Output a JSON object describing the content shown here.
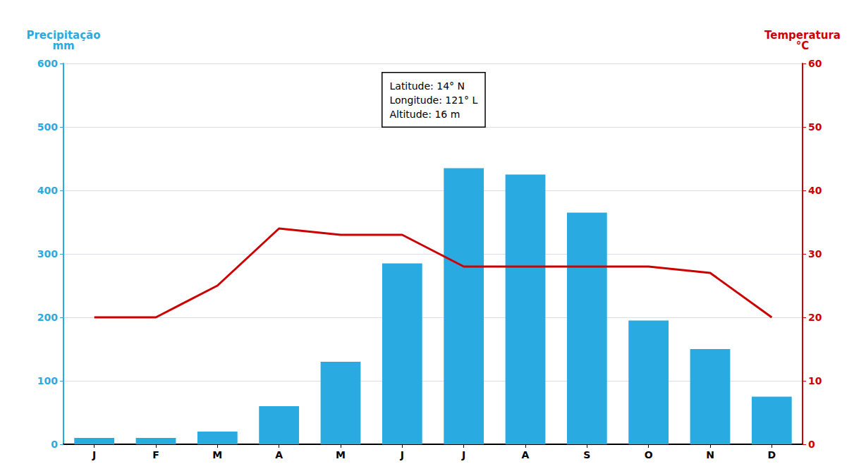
{
  "chart_data": {
    "type": "bar",
    "categories": [
      "J",
      "F",
      "M",
      "A",
      "M",
      "J",
      "J",
      "A",
      "S",
      "O",
      "N",
      "D"
    ],
    "series": [
      {
        "type": "bar",
        "color": "#29abe2",
        "values": [
          10,
          10,
          20,
          60,
          130,
          285,
          435,
          425,
          365,
          195,
          150,
          75
        ]
      },
      {
        "type": "line",
        "color": "#cc0000",
        "axis": "y2",
        "values": [
          20,
          20,
          25,
          34,
          33,
          33,
          28,
          28,
          28,
          28,
          27,
          20
        ]
      }
    ],
    "ylabel": "Precipitação\nmm",
    "y2label": "Temperatura\n°C",
    "ylim": [
      0,
      600
    ],
    "yticks": [
      0,
      100,
      200,
      300,
      400,
      500,
      600
    ],
    "y2lim": [
      0,
      60
    ],
    "y2ticks": [
      0,
      10,
      20,
      30,
      40,
      50,
      60
    ],
    "grid": true,
    "annotations": [
      {
        "text": "Latitude: 14° N\nLongitude: 121° L\nAltitude: 16 m"
      }
    ]
  }
}
